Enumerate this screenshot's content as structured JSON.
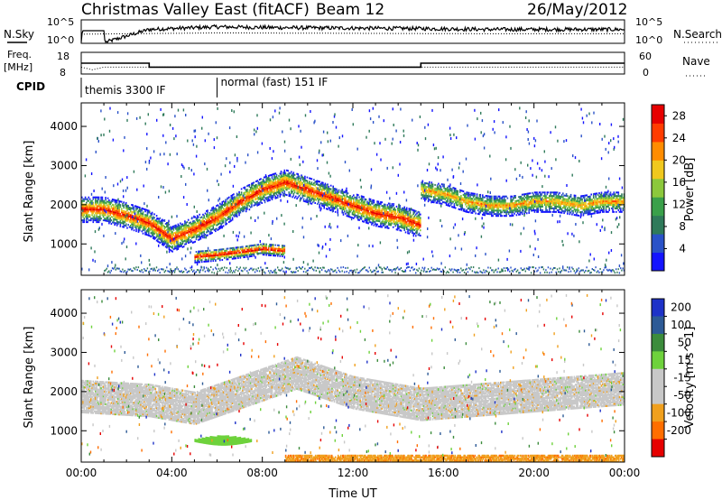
{
  "header": {
    "station": "Christmas Valley East (fitACF)",
    "beam": "Beam 12",
    "date": "26/May/2012"
  },
  "colors": {
    "power_scale": [
      "#1414ff",
      "#2a52c8",
      "#2f7a5a",
      "#3aa04a",
      "#8cc83c",
      "#f0c81e",
      "#ff8c00",
      "#ff3c00",
      "#e60000"
    ],
    "velocity_scale": [
      "#1e32c8",
      "#2d5a96",
      "#3c8c3c",
      "#6ed23c",
      "#c8c8c8",
      "#c8c8c8",
      "#f0a01e",
      "#ff6e00",
      "#e60000"
    ],
    "ground_scatter": "#c8c8c8"
  },
  "top_panels": {
    "nsky": {
      "left_label": "N.Sky",
      "left_ticks": [
        "10^5",
        "10^0"
      ],
      "right_ticks": [
        "10^5",
        "10^0"
      ],
      "right_label": "N.Search"
    },
    "freq": {
      "left_label_1": "Freq.",
      "left_label_2": "[MHz]",
      "left_ticks": [
        "18",
        "8"
      ],
      "right_ticks": [
        "60",
        "0"
      ],
      "right_label": "Nave"
    },
    "cpid": {
      "label": "CPID",
      "segments": [
        {
          "name": "themis 3300 IF",
          "start_hour": 0,
          "end_hour": 6
        },
        {
          "name": "normal (fast) 151 IF",
          "start_hour": 6,
          "end_hour": 24
        }
      ]
    }
  },
  "chart_data": [
    {
      "type": "line",
      "title": "N.Sky / N.Search",
      "x_unit": "hour UT",
      "xlim": [
        0,
        24
      ],
      "ylim_log10": [
        0,
        5
      ],
      "series": [
        {
          "name": "N.Sky",
          "x": [
            0,
            0.05,
            1,
            1.05,
            3,
            6,
            9,
            12,
            15,
            18,
            21,
            24
          ],
          "y_log10": [
            0,
            2.7,
            2.7,
            0,
            3.0,
            3.6,
            3.4,
            3.3,
            3.2,
            3.0,
            3.0,
            3.0
          ]
        },
        {
          "name": "N.Search",
          "x": [
            0,
            6,
            12,
            18,
            24
          ],
          "y_log10": [
            1.9,
            2.2,
            2.1,
            2.0,
            2.0
          ]
        }
      ]
    },
    {
      "type": "line",
      "title": "Freq / Nave",
      "x_unit": "hour UT",
      "xlim": [
        0,
        24
      ],
      "series": [
        {
          "name": "Freq. [MHz]",
          "x": [
            0,
            3,
            3,
            15,
            15,
            24
          ],
          "y": [
            13,
            13,
            11,
            11,
            13,
            13
          ]
        },
        {
          "name": "Nave",
          "x": [
            0,
            0.5,
            1,
            24
          ],
          "y": [
            18,
            10,
            18,
            18
          ]
        }
      ]
    },
    {
      "type": "heatmap",
      "title": "Power",
      "xlabel": "",
      "ylabel": "Slant Range [km]",
      "x_unit": "hour UT",
      "xlim": [
        0,
        24
      ],
      "ylim": [
        200,
        4600
      ],
      "yticks": [
        1000,
        2000,
        3000,
        4000
      ],
      "colorbar": {
        "label": "Power [dB]",
        "ticks": [
          4,
          8,
          12,
          16,
          20,
          24,
          28
        ],
        "range": [
          0,
          30
        ]
      },
      "bands": [
        {
          "hours": [
            0,
            1,
            2,
            3,
            4,
            5,
            6,
            7,
            8,
            9,
            10,
            11,
            12,
            13,
            14,
            15
          ],
          "range_km": [
            1900,
            1900,
            1750,
            1550,
            1150,
            1400,
            1700,
            2100,
            2400,
            2600,
            2400,
            2200,
            2000,
            1800,
            1700,
            1500
          ],
          "width_km": 320,
          "peak_db": 28
        },
        {
          "hours": [
            15,
            16,
            17,
            18,
            19,
            20,
            21,
            22,
            23,
            24
          ],
          "range_km": [
            2400,
            2300,
            2100,
            2000,
            2000,
            2100,
            2100,
            2000,
            2100,
            2100
          ],
          "width_km": 260,
          "peak_db": 22
        },
        {
          "hours": [
            5,
            6,
            7,
            8,
            9
          ],
          "range_km": [
            700,
            750,
            820,
            900,
            850
          ],
          "width_km": 150,
          "peak_db": 30
        }
      ]
    },
    {
      "type": "heatmap",
      "title": "Velocity",
      "xlabel": "Time UT",
      "ylabel": "Slant Range [km]",
      "x_unit": "hour UT",
      "xlim": [
        0,
        24
      ],
      "ylim": [
        200,
        4600
      ],
      "yticks": [
        1000,
        2000,
        3000,
        4000
      ],
      "xticks": [
        "00:00",
        "04:00",
        "08:00",
        "12:00",
        "16:00",
        "20:00",
        "00:00"
      ],
      "colorbar": {
        "label": "Velocity [m s^-1]",
        "ticks": [
          200,
          100,
          50,
          15,
          -15,
          -50,
          -100,
          -200
        ],
        "range": [
          -250,
          250
        ]
      },
      "regions": [
        {
          "name": "ground-scatter band",
          "hours": [
            0,
            3,
            5,
            8,
            9.5,
            12,
            15,
            24
          ],
          "range_km": [
            1900,
            1800,
            1600,
            2200,
            2500,
            2000,
            1700,
            2100
          ],
          "width_km": 400
        },
        {
          "name": "E-region patch",
          "hours": [
            5,
            7.5
          ],
          "range_km": [
            780,
            780
          ],
          "velocity": 50
        },
        {
          "name": "near-range",
          "hours": [
            9,
            24
          ],
          "range_km": [
            300,
            300
          ],
          "velocity": -50
        }
      ]
    }
  ]
}
